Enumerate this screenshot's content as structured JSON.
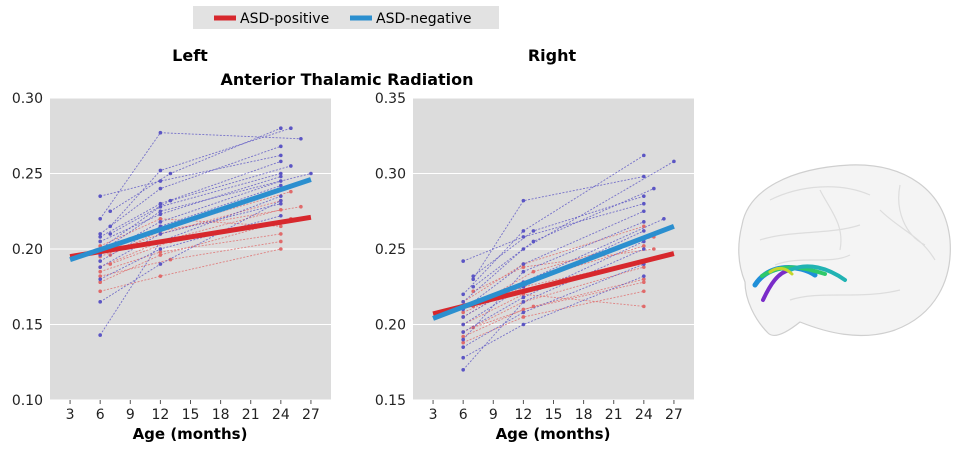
{
  "figure": {
    "title": "Anterior Thalamic Radiation",
    "legend": [
      {
        "label": "ASD-positive",
        "color": "#d7282d"
      },
      {
        "label": "ASD-negative",
        "color": "#2b8fcf"
      }
    ],
    "legend_position": "top-left",
    "brain_image": "brain-tract-illustration"
  },
  "chart_data": [
    {
      "type": "line",
      "title": "Left",
      "xlabel": "Age (months)",
      "ylabel": "",
      "xlim": [
        1,
        29
      ],
      "ylim": [
        0.1,
        0.3
      ],
      "x_ticks": [
        "3",
        "6",
        "9",
        "12",
        "15",
        "18",
        "21",
        "24",
        "27"
      ],
      "x_tick_values": [
        3,
        6,
        9,
        12,
        15,
        18,
        21,
        24,
        27
      ],
      "y_ticks": [
        "0.10",
        "0.15",
        "0.20",
        "0.25",
        "0.30"
      ],
      "y_tick_values": [
        0.1,
        0.15,
        0.2,
        0.25,
        0.3
      ],
      "grid": true,
      "series": [
        {
          "name": "ASD-positive",
          "color": "#d7282d",
          "x": [
            3,
            27
          ],
          "y": [
            0.195,
            0.221
          ]
        },
        {
          "name": "ASD-negative",
          "color": "#2b8fcf",
          "x": [
            3,
            27
          ],
          "y": [
            0.193,
            0.246
          ]
        }
      ],
      "individual_trajectories": {
        "ASD-positive": [
          [
            [
              6,
              0.178
            ],
            [
              12,
              0.196
            ],
            [
              24,
              0.218
            ]
          ],
          [
            [
              6,
              0.188
            ],
            [
              12,
              0.205
            ],
            [
              24,
              0.226
            ]
          ],
          [
            [
              6,
              0.172
            ],
            [
              12,
              0.182
            ],
            [
              24,
              0.2
            ]
          ],
          [
            [
              6,
              0.195
            ],
            [
              12,
              0.21
            ],
            [
              24,
              0.232
            ]
          ],
          [
            [
              7,
              0.2
            ],
            [
              13,
              0.215
            ],
            [
              25,
              0.238
            ]
          ],
          [
            [
              6,
              0.185
            ],
            [
              12,
              0.198
            ],
            [
              24,
              0.21
            ]
          ],
          [
            [
              7,
              0.19
            ],
            [
              13,
              0.205
            ],
            [
              25,
              0.22
            ]
          ],
          [
            [
              6,
              0.202
            ],
            [
              12,
              0.22
            ],
            [
              24,
              0.215
            ]
          ],
          [
            [
              6,
              0.182
            ],
            [
              13,
              0.193
            ],
            [
              24,
              0.205
            ]
          ],
          [
            [
              7,
              0.196
            ],
            [
              12,
              0.212
            ],
            [
              26,
              0.228
            ]
          ]
        ],
        "ASD-negative": [
          [
            [
              6,
              0.165
            ],
            [
              12,
              0.19
            ],
            [
              24,
              0.232
            ]
          ],
          [
            [
              6,
              0.2
            ],
            [
              12,
              0.228
            ],
            [
              24,
              0.25
            ]
          ],
          [
            [
              6,
              0.21
            ],
            [
              12,
              0.24
            ],
            [
              24,
              0.268
            ]
          ],
          [
            [
              6,
              0.192
            ],
            [
              12,
              0.215
            ],
            [
              24,
              0.242
            ]
          ],
          [
            [
              6,
              0.143
            ],
            [
              12,
              0.205
            ],
            [
              24,
              0.235
            ]
          ],
          [
            [
              7,
              0.215
            ],
            [
              12,
              0.252
            ],
            [
              25,
              0.28
            ]
          ],
          [
            [
              6,
              0.205
            ],
            [
              12,
              0.223
            ],
            [
              24,
              0.248
            ]
          ],
          [
            [
              6,
              0.22
            ],
            [
              12,
              0.277
            ],
            [
              26,
              0.273
            ]
          ],
          [
            [
              6,
              0.196
            ],
            [
              12,
              0.218
            ],
            [
              24,
              0.245
            ]
          ],
          [
            [
              6,
              0.188
            ],
            [
              12,
              0.21
            ],
            [
              24,
              0.23
            ]
          ],
          [
            [
              7,
              0.21
            ],
            [
              13,
              0.232
            ],
            [
              25,
              0.255
            ]
          ],
          [
            [
              6,
              0.235
            ],
            [
              12,
              0.245
            ],
            [
              24,
              0.262
            ]
          ],
          [
            [
              6,
              0.18
            ],
            [
              12,
              0.2
            ],
            [
              24,
              0.222
            ]
          ],
          [
            [
              7,
              0.225
            ],
            [
              13,
              0.25
            ],
            [
              24,
              0.28
            ]
          ],
          [
            [
              6,
              0.208
            ],
            [
              12,
              0.23
            ],
            [
              24,
              0.258
            ]
          ],
          [
            [
              6,
              0.198
            ],
            [
              12,
              0.225
            ],
            [
              27,
              0.25
            ]
          ]
        ]
      }
    },
    {
      "type": "line",
      "title": "Right",
      "xlabel": "Age (months)",
      "ylabel": "",
      "xlim": [
        1,
        29
      ],
      "ylim": [
        0.15,
        0.35
      ],
      "x_ticks": [
        "3",
        "6",
        "9",
        "12",
        "15",
        "18",
        "21",
        "24",
        "27"
      ],
      "x_tick_values": [
        3,
        6,
        9,
        12,
        15,
        18,
        21,
        24,
        27
      ],
      "y_ticks": [
        "0.15",
        "0.20",
        "0.25",
        "0.30",
        "0.35"
      ],
      "y_tick_values": [
        0.15,
        0.2,
        0.25,
        0.3,
        0.35
      ],
      "grid": true,
      "series": [
        {
          "name": "ASD-positive",
          "color": "#d7282d",
          "x": [
            3,
            27
          ],
          "y": [
            0.207,
            0.247
          ]
        },
        {
          "name": "ASD-negative",
          "color": "#2b8fcf",
          "x": [
            3,
            27
          ],
          "y": [
            0.204,
            0.265
          ]
        }
      ],
      "individual_trajectories": {
        "ASD-positive": [
          [
            [
              6,
              0.195
            ],
            [
              12,
              0.215
            ],
            [
              24,
              0.238
            ]
          ],
          [
            [
              6,
              0.205
            ],
            [
              12,
              0.228
            ],
            [
              24,
              0.252
            ]
          ],
          [
            [
              6,
              0.188
            ],
            [
              12,
              0.205
            ],
            [
              24,
              0.222
            ]
          ],
          [
            [
              7,
              0.212
            ],
            [
              13,
              0.235
            ],
            [
              25,
              0.258
            ]
          ],
          [
            [
              6,
              0.2
            ],
            [
              12,
              0.22
            ],
            [
              24,
              0.212
            ]
          ],
          [
            [
              6,
              0.215
            ],
            [
              12,
              0.24
            ],
            [
              24,
              0.265
            ]
          ],
          [
            [
              7,
              0.198
            ],
            [
              13,
              0.212
            ],
            [
              24,
              0.23
            ]
          ],
          [
            [
              6,
              0.208
            ],
            [
              12,
              0.225
            ],
            [
              26,
              0.245
            ]
          ],
          [
            [
              6,
              0.192
            ],
            [
              12,
              0.21
            ],
            [
              24,
              0.228
            ]
          ],
          [
            [
              7,
              0.222
            ],
            [
              12,
              0.238
            ],
            [
              25,
              0.25
            ]
          ]
        ],
        "ASD-negative": [
          [
            [
              6,
              0.17
            ],
            [
              12,
              0.215
            ],
            [
              24,
              0.25
            ]
          ],
          [
            [
              6,
              0.21
            ],
            [
              12,
              0.24
            ],
            [
              24,
              0.275
            ]
          ],
          [
            [
              6,
              0.22
            ],
            [
              12,
              0.262
            ],
            [
              24,
              0.312
            ]
          ],
          [
            [
              6,
              0.2
            ],
            [
              12,
              0.225
            ],
            [
              24,
              0.262
            ]
          ],
          [
            [
              7,
              0.23
            ],
            [
              12,
              0.282
            ],
            [
              24,
              0.298
            ]
          ],
          [
            [
              6,
              0.185
            ],
            [
              12,
              0.208
            ],
            [
              24,
              0.24
            ]
          ],
          [
            [
              6,
              0.215
            ],
            [
              12,
              0.25
            ],
            [
              27,
              0.308
            ]
          ],
          [
            [
              7,
              0.225
            ],
            [
              13,
              0.255
            ],
            [
              25,
              0.29
            ]
          ],
          [
            [
              6,
              0.195
            ],
            [
              12,
              0.218
            ],
            [
              24,
              0.255
            ]
          ],
          [
            [
              6,
              0.178
            ],
            [
              12,
              0.2
            ],
            [
              24,
              0.232
            ]
          ],
          [
            [
              7,
              0.232
            ],
            [
              13,
              0.262
            ],
            [
              24,
              0.285
            ]
          ],
          [
            [
              6,
              0.19
            ],
            [
              12,
              0.235
            ],
            [
              24,
              0.268
            ]
          ],
          [
            [
              6,
              0.205
            ],
            [
              12,
              0.228
            ],
            [
              26,
              0.27
            ]
          ],
          [
            [
              6,
              0.242
            ],
            [
              12,
              0.258
            ],
            [
              24,
              0.28
            ]
          ]
        ]
      }
    }
  ]
}
